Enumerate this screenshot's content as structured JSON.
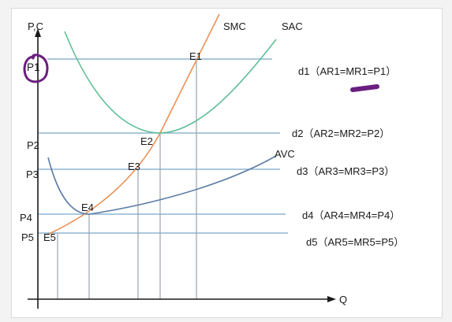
{
  "axes": {
    "y_label": "P,C",
    "x_label": "Q"
  },
  "curves": {
    "smc": "SMC",
    "sac": "SAC",
    "avc": "AVC"
  },
  "price_levels": [
    {
      "price": "P1",
      "point": "E1",
      "demand": "d1（AR1=MR1=P1）"
    },
    {
      "price": "P2",
      "point": "E2",
      "demand": "d2（AR2=MR2=P2）"
    },
    {
      "price": "P3",
      "point": "E3",
      "demand": "d3（AR3=MR3=P3）"
    },
    {
      "price": "P4",
      "point": "E4",
      "demand": "d4（AR4=MR4=P4）"
    },
    {
      "price": "P5",
      "point": "E5",
      "demand": "d5（AR5=MR5=P5）"
    }
  ],
  "colors": {
    "smc": "#e8925a",
    "sac": "#5fbf96",
    "avc": "#5d7ea6",
    "price_line": "#8fb5d4",
    "axis": "#1a1a1a",
    "highlight": "#6a1f80"
  }
}
